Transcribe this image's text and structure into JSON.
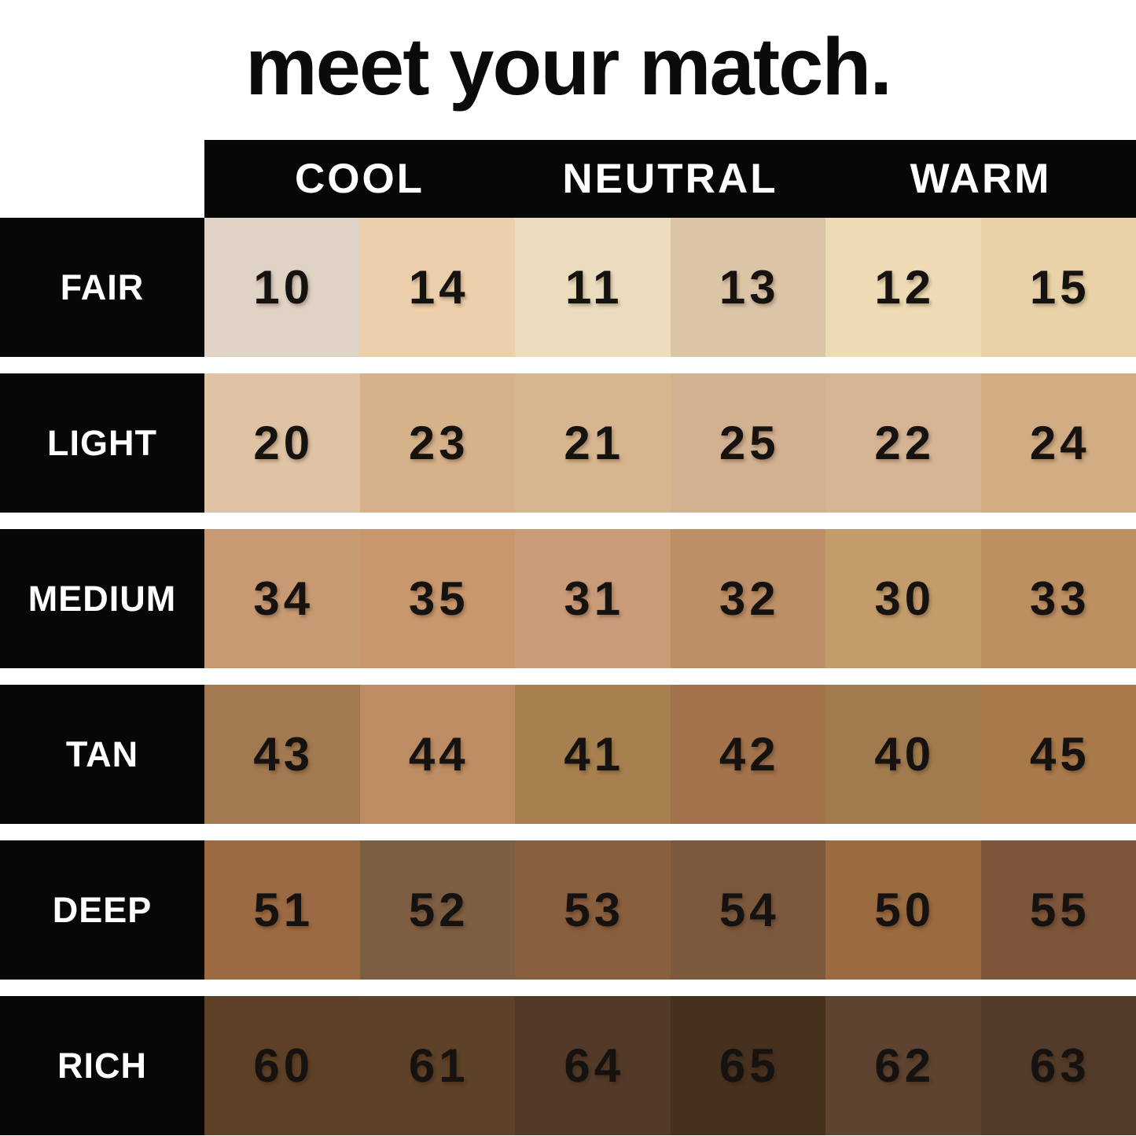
{
  "title": "meet your match.",
  "colors": {
    "background": "#ffffff",
    "header_bg": "#070707",
    "label_bg": "#070707",
    "header_text": "#ffffff",
    "number_text": "#151210"
  },
  "chart_data": {
    "type": "table",
    "title": "meet your match.",
    "column_groups": [
      "COOL",
      "NEUTRAL",
      "WARM"
    ],
    "columns_per_group": 2,
    "row_labels": [
      "FAIR",
      "LIGHT",
      "MEDIUM",
      "TAN",
      "DEEP",
      "RICH"
    ],
    "rows": [
      {
        "label": "FAIR",
        "shades": [
          {
            "number": "10",
            "color": "#e0d2c5"
          },
          {
            "number": "14",
            "color": "#ecd0ab"
          },
          {
            "number": "11",
            "color": "#eadcbc"
          },
          {
            "number": "13",
            "color": "#dcc5a6"
          },
          {
            "number": "12",
            "color": "#eddbb3"
          },
          {
            "number": "15",
            "color": "#e9d2a8"
          }
        ]
      },
      {
        "label": "LIGHT",
        "shades": [
          {
            "number": "20",
            "color": "#e0c3a4"
          },
          {
            "number": "23",
            "color": "#d6b28b"
          },
          {
            "number": "21",
            "color": "#d7b58f"
          },
          {
            "number": "25",
            "color": "#d2b190"
          },
          {
            "number": "22",
            "color": "#d5b493"
          },
          {
            "number": "24",
            "color": "#d2ad83"
          }
        ]
      },
      {
        "label": "MEDIUM",
        "shades": [
          {
            "number": "34",
            "color": "#c89a73"
          },
          {
            "number": "35",
            "color": "#c9976e"
          },
          {
            "number": "31",
            "color": "#c99b79"
          },
          {
            "number": "32",
            "color": "#bd8f67"
          },
          {
            "number": "30",
            "color": "#c49c6c"
          },
          {
            "number": "33",
            "color": "#bd9062"
          }
        ]
      },
      {
        "label": "TAN",
        "shades": [
          {
            "number": "43",
            "color": "#a27950"
          },
          {
            "number": "44",
            "color": "#bc8d62"
          },
          {
            "number": "41",
            "color": "#a8804f"
          },
          {
            "number": "42",
            "color": "#a3734c"
          },
          {
            "number": "40",
            "color": "#a17b4e"
          },
          {
            "number": "45",
            "color": "#a87a4b"
          }
        ]
      },
      {
        "label": "DEEP",
        "shades": [
          {
            "number": "51",
            "color": "#9c6a42"
          },
          {
            "number": "52",
            "color": "#7e5e43"
          },
          {
            "number": "53",
            "color": "#8a5f3e"
          },
          {
            "number": "54",
            "color": "#7c593d"
          },
          {
            "number": "50",
            "color": "#9a6a40"
          },
          {
            "number": "55",
            "color": "#7d553a"
          }
        ]
      },
      {
        "label": "RICH",
        "shades": [
          {
            "number": "60",
            "color": "#5e4026"
          },
          {
            "number": "61",
            "color": "#5d4128"
          },
          {
            "number": "64",
            "color": "#533927"
          },
          {
            "number": "65",
            "color": "#46311f"
          },
          {
            "number": "62",
            "color": "#5e4330"
          },
          {
            "number": "63",
            "color": "#533b29"
          }
        ]
      }
    ]
  }
}
